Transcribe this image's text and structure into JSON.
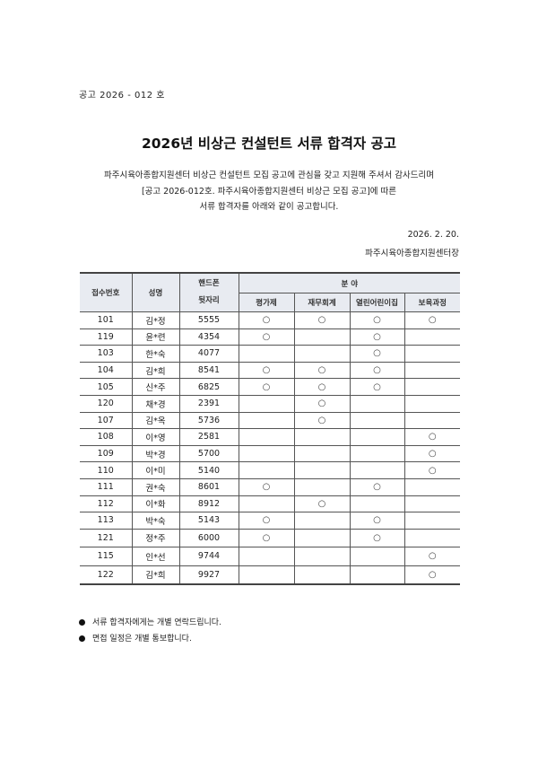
{
  "notice_number": "공고 2026 - 012 호",
  "title": "2026년 비상근 컨설턴트 서류 합격자 공고",
  "intro": [
    "파주시육아종합지원센터 비상근 컨설턴트 모집 공고에 관심을 갖고 지원해 주셔서 감사드리며",
    "[공고 2026-012호. 파주시육아종합지원센터 비상근 모집 공고]에 따른",
    "서류 합격자를 아래와 같이 공고합니다."
  ],
  "date": "2026. 2. 20.",
  "issuer": "파주시육아종합지원센터장",
  "table": {
    "headers": {
      "id": "접수번호",
      "name": "성명",
      "phone": "핸드폰 뒷자리",
      "phone_line1": "핸드폰",
      "phone_line2": "뒷자리",
      "field_group": "분 야",
      "fields": [
        "평가제",
        "재무회계",
        "열린어린이집",
        "보육과정"
      ]
    },
    "mark_symbol": "○",
    "rows": [
      {
        "id": "101",
        "name": "김*정",
        "phone": "5555",
        "marks": [
          1,
          1,
          1,
          1
        ]
      },
      {
        "id": "119",
        "name": "윤*련",
        "phone": "4354",
        "marks": [
          1,
          0,
          1,
          0
        ]
      },
      {
        "id": "103",
        "name": "한*숙",
        "phone": "4077",
        "marks": [
          0,
          0,
          1,
          0
        ]
      },
      {
        "id": "104",
        "name": "김*희",
        "phone": "8541",
        "marks": [
          1,
          1,
          1,
          0
        ]
      },
      {
        "id": "105",
        "name": "신*주",
        "phone": "6825",
        "marks": [
          1,
          1,
          1,
          0
        ]
      },
      {
        "id": "120",
        "name": "채*경",
        "phone": "2391",
        "marks": [
          0,
          1,
          0,
          0
        ]
      },
      {
        "id": "107",
        "name": "김*옥",
        "phone": "5736",
        "marks": [
          0,
          1,
          0,
          0
        ]
      },
      {
        "id": "108",
        "name": "이*영",
        "phone": "2581",
        "marks": [
          0,
          0,
          0,
          1
        ]
      },
      {
        "id": "109",
        "name": "박*경",
        "phone": "5700",
        "marks": [
          0,
          0,
          0,
          1
        ]
      },
      {
        "id": "110",
        "name": "이*미",
        "phone": "5140",
        "marks": [
          0,
          0,
          0,
          1
        ]
      },
      {
        "id": "111",
        "name": "권*숙",
        "phone": "8601",
        "marks": [
          1,
          0,
          1,
          0
        ]
      },
      {
        "id": "112",
        "name": "이*화",
        "phone": "8912",
        "marks": [
          0,
          1,
          0,
          0
        ]
      },
      {
        "id": "113",
        "name": "박*숙",
        "phone": "5143",
        "marks": [
          1,
          0,
          1,
          0
        ]
      },
      {
        "id": "121",
        "name": "정*주",
        "phone": "6000",
        "marks": [
          1,
          0,
          1,
          0
        ]
      },
      {
        "id": "115",
        "name": "인*선",
        "phone": "9744",
        "marks": [
          0,
          0,
          0,
          1
        ]
      },
      {
        "id": "122",
        "name": "김*희",
        "phone": "9927",
        "marks": [
          0,
          0,
          0,
          1
        ]
      }
    ]
  },
  "notes": [
    "서류 합격자에게는 개별 연락드립니다.",
    "면접 일정은 개별 통보합니다."
  ]
}
